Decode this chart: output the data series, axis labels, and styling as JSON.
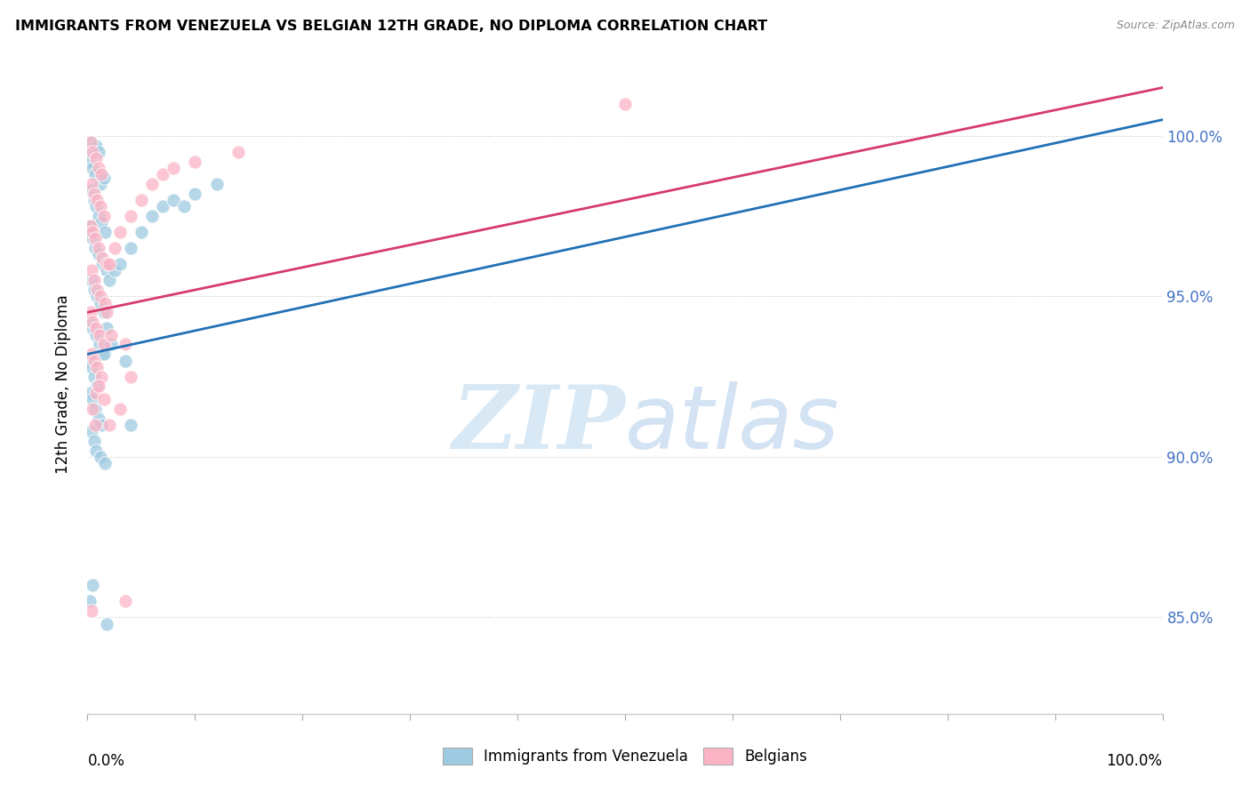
{
  "title": "IMMIGRANTS FROM VENEZUELA VS BELGIAN 12TH GRADE, NO DIPLOMA CORRELATION CHART",
  "source": "Source: ZipAtlas.com",
  "ylabel": "12th Grade, No Diploma",
  "watermark_zip": "ZIP",
  "watermark_atlas": "atlas",
  "blue_color": "#9ecae1",
  "pink_color": "#fbb4c6",
  "blue_line_color": "#2171b5",
  "pink_line_color": "#d63b6e",
  "blue_scatter": [
    [
      0.2,
      99.5
    ],
    [
      0.4,
      99.8
    ],
    [
      0.6,
      99.6
    ],
    [
      0.8,
      99.7
    ],
    [
      1.0,
      99.5
    ],
    [
      0.3,
      99.2
    ],
    [
      0.5,
      99.0
    ],
    [
      0.7,
      98.8
    ],
    [
      1.2,
      98.5
    ],
    [
      1.5,
      98.7
    ],
    [
      0.4,
      98.3
    ],
    [
      0.6,
      98.0
    ],
    [
      0.8,
      97.8
    ],
    [
      1.0,
      97.5
    ],
    [
      1.3,
      97.3
    ],
    [
      1.6,
      97.0
    ],
    [
      0.2,
      97.2
    ],
    [
      0.3,
      97.0
    ],
    [
      0.5,
      96.8
    ],
    [
      0.7,
      96.5
    ],
    [
      1.0,
      96.3
    ],
    [
      1.4,
      96.0
    ],
    [
      1.8,
      95.8
    ],
    [
      0.4,
      95.5
    ],
    [
      0.6,
      95.2
    ],
    [
      0.9,
      95.0
    ],
    [
      1.2,
      94.8
    ],
    [
      1.5,
      94.5
    ],
    [
      0.3,
      94.2
    ],
    [
      0.5,
      94.0
    ],
    [
      0.8,
      93.8
    ],
    [
      1.1,
      93.5
    ],
    [
      1.4,
      93.2
    ],
    [
      0.2,
      93.0
    ],
    [
      0.4,
      92.8
    ],
    [
      0.6,
      92.5
    ],
    [
      0.9,
      92.2
    ],
    [
      0.3,
      92.0
    ],
    [
      0.5,
      91.8
    ],
    [
      0.7,
      91.5
    ],
    [
      1.0,
      91.2
    ],
    [
      1.3,
      91.0
    ],
    [
      0.4,
      90.8
    ],
    [
      0.6,
      90.5
    ],
    [
      0.8,
      90.2
    ],
    [
      1.2,
      90.0
    ],
    [
      1.6,
      89.8
    ],
    [
      2.0,
      95.5
    ],
    [
      2.5,
      95.8
    ],
    [
      3.0,
      96.0
    ],
    [
      4.0,
      96.5
    ],
    [
      5.0,
      97.0
    ],
    [
      6.0,
      97.5
    ],
    [
      7.0,
      97.8
    ],
    [
      8.0,
      98.0
    ],
    [
      10.0,
      98.2
    ],
    [
      1.8,
      94.0
    ],
    [
      2.2,
      93.5
    ],
    [
      3.5,
      93.0
    ],
    [
      1.5,
      93.2
    ],
    [
      0.2,
      85.5
    ],
    [
      1.8,
      84.8
    ],
    [
      4.0,
      91.0
    ],
    [
      9.0,
      97.8
    ],
    [
      12.0,
      98.5
    ],
    [
      0.5,
      86.0
    ]
  ],
  "pink_scatter": [
    [
      0.3,
      99.8
    ],
    [
      0.5,
      99.5
    ],
    [
      0.8,
      99.3
    ],
    [
      1.0,
      99.0
    ],
    [
      1.3,
      98.8
    ],
    [
      0.4,
      98.5
    ],
    [
      0.6,
      98.2
    ],
    [
      0.9,
      98.0
    ],
    [
      1.2,
      97.8
    ],
    [
      1.5,
      97.5
    ],
    [
      0.3,
      97.2
    ],
    [
      0.5,
      97.0
    ],
    [
      0.7,
      96.8
    ],
    [
      1.0,
      96.5
    ],
    [
      1.4,
      96.2
    ],
    [
      1.8,
      96.0
    ],
    [
      0.4,
      95.8
    ],
    [
      0.6,
      95.5
    ],
    [
      0.9,
      95.2
    ],
    [
      1.2,
      95.0
    ],
    [
      1.6,
      94.8
    ],
    [
      0.3,
      94.5
    ],
    [
      0.5,
      94.2
    ],
    [
      0.8,
      94.0
    ],
    [
      1.1,
      93.8
    ],
    [
      1.5,
      93.5
    ],
    [
      0.4,
      93.2
    ],
    [
      0.6,
      93.0
    ],
    [
      0.9,
      92.8
    ],
    [
      1.3,
      92.5
    ],
    [
      2.0,
      96.0
    ],
    [
      2.5,
      96.5
    ],
    [
      3.0,
      97.0
    ],
    [
      4.0,
      97.5
    ],
    [
      5.0,
      98.0
    ],
    [
      6.0,
      98.5
    ],
    [
      7.0,
      98.8
    ],
    [
      8.0,
      99.0
    ],
    [
      10.0,
      99.2
    ],
    [
      14.0,
      99.5
    ],
    [
      50.0,
      101.0
    ],
    [
      1.8,
      94.5
    ],
    [
      2.2,
      93.8
    ],
    [
      3.5,
      93.5
    ],
    [
      0.4,
      85.2
    ],
    [
      3.5,
      85.5
    ],
    [
      2.0,
      91.0
    ],
    [
      3.0,
      91.5
    ],
    [
      4.0,
      92.5
    ],
    [
      0.8,
      92.0
    ],
    [
      1.0,
      92.2
    ],
    [
      1.5,
      91.8
    ],
    [
      0.5,
      91.5
    ],
    [
      0.7,
      91.0
    ]
  ],
  "blue_line_pts": [
    [
      0,
      93.2
    ],
    [
      100,
      100.5
    ]
  ],
  "pink_line_pts": [
    [
      0,
      94.5
    ],
    [
      100,
      101.5
    ]
  ],
  "xlim": [
    0,
    100
  ],
  "ylim": [
    82,
    102.5
  ],
  "ytick_positions": [
    85,
    90,
    95,
    100
  ],
  "ytick_labels": [
    "85.0%",
    "90.0%",
    "95.0%",
    "100.0%"
  ]
}
